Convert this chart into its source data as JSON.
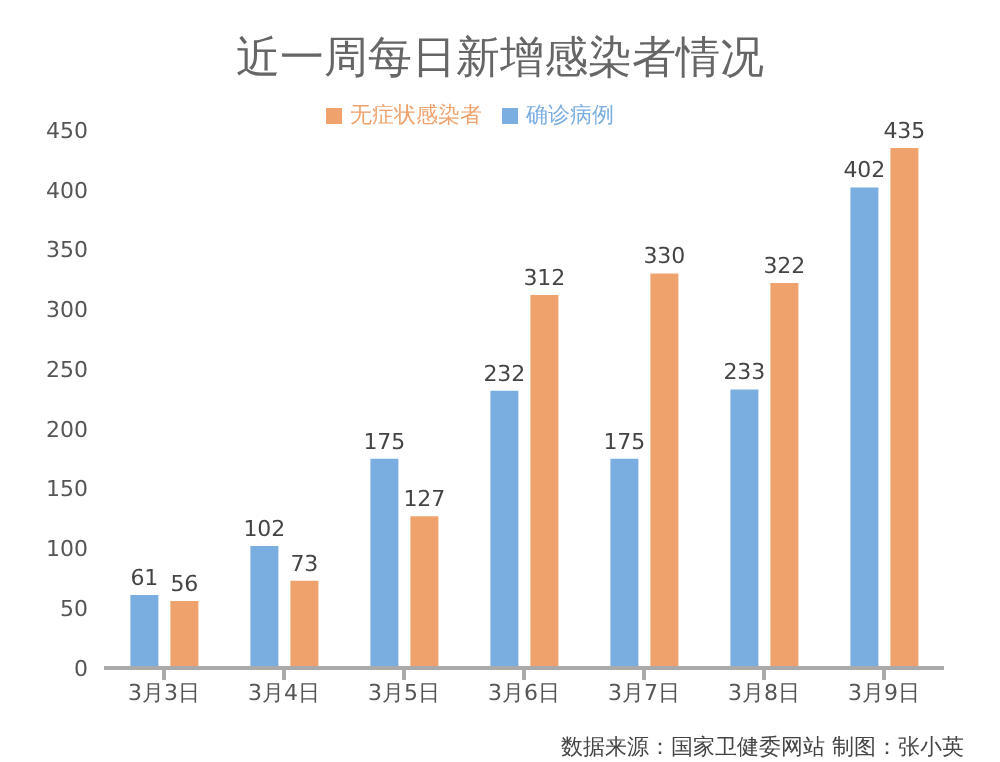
{
  "chart_data": {
    "type": "bar",
    "title": "近一周每日新增感染者情况",
    "categories": [
      "3月3日",
      "3月4日",
      "3月5日",
      "3月6日",
      "3月7日",
      "3月8日",
      "3月9日"
    ],
    "series": [
      {
        "name": "确诊病例",
        "color": "#7aaee0",
        "values": [
          61,
          102,
          175,
          232,
          175,
          233,
          402
        ]
      },
      {
        "name": "无症状感染者",
        "color": "#f0a26c",
        "values": [
          56,
          73,
          127,
          312,
          330,
          322,
          435
        ]
      }
    ],
    "ylim": [
      0,
      450
    ],
    "yticks": [
      0,
      50,
      100,
      150,
      200,
      250,
      300,
      350,
      400,
      450
    ],
    "data_labels": true,
    "grid": false,
    "legend": "top",
    "annotations": [
      "数据来源：国家卫健委网站 制图：张小英"
    ]
  }
}
